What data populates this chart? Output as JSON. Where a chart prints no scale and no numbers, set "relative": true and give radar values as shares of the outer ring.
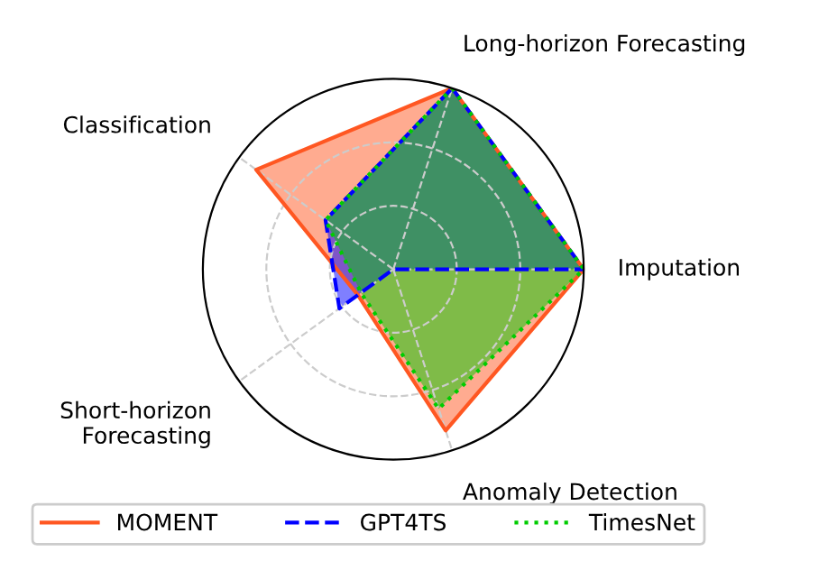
{
  "chart_data": {
    "type": "radar",
    "relative": true,
    "grid": true,
    "legend": "bottom",
    "marker": "none",
    "categories": [
      "Long-horizon Forecasting",
      "Imputation",
      "Anomaly Detection",
      "Short-horizon\nForecasting",
      "Classification"
    ],
    "series": [
      {
        "name": "MOMENT",
        "color": "#ff5722",
        "line_style": "solid",
        "values": [
          1.0,
          1.0,
          0.89,
          0.23,
          0.89
        ]
      },
      {
        "name": "GPT4TS",
        "color": "#0000ff",
        "line_style": "dashed",
        "values": [
          1.0,
          1.0,
          0.0,
          0.35,
          0.44
        ]
      },
      {
        "name": "TimesNet",
        "color": "#00cc00",
        "line_style": "dotted",
        "values": [
          1.0,
          1.0,
          0.77,
          0.21,
          0.44
        ]
      }
    ]
  }
}
